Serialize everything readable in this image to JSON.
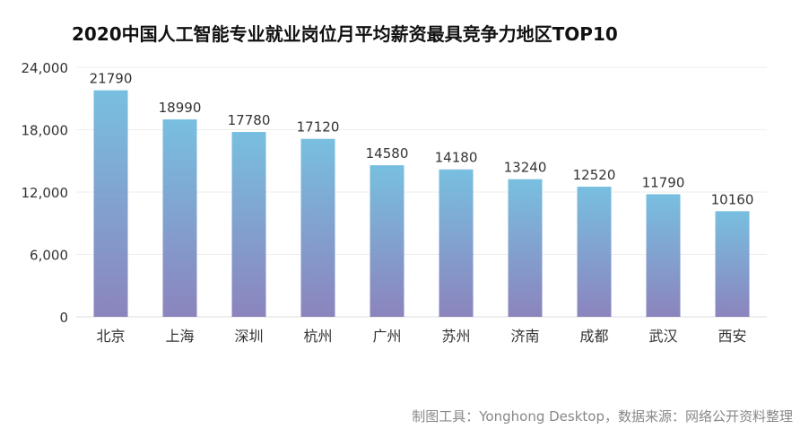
{
  "chart_data": {
    "type": "bar",
    "title": "2020中国人工智能专业就业岗位月平均薪资最具竞争力地区TOP10",
    "categories": [
      "北京",
      "上海",
      "深圳",
      "杭州",
      "广州",
      "苏州",
      "济南",
      "成都",
      "武汉",
      "西安"
    ],
    "values": [
      21790,
      18990,
      17780,
      17120,
      14580,
      14180,
      13240,
      12520,
      11790,
      10160
    ],
    "value_labels": [
      "21790",
      "18990",
      "17780",
      "17120",
      "14580",
      "14180",
      "13240",
      "12520",
      "11790",
      "10160"
    ],
    "y_ticks": [
      0,
      6000,
      12000,
      18000,
      24000
    ],
    "y_tick_labels": [
      "0",
      "6,000",
      "12,000",
      "18,000",
      "24,000"
    ],
    "ylim": [
      0,
      24000
    ],
    "grid": true,
    "bar_gradient": {
      "top": "#78bfe0",
      "bottom": "#8b84bd"
    },
    "xlabel": "",
    "ylabel": ""
  },
  "source_note": "制图工具：Yonghong Desktop，数据来源：网络公开资料整理"
}
